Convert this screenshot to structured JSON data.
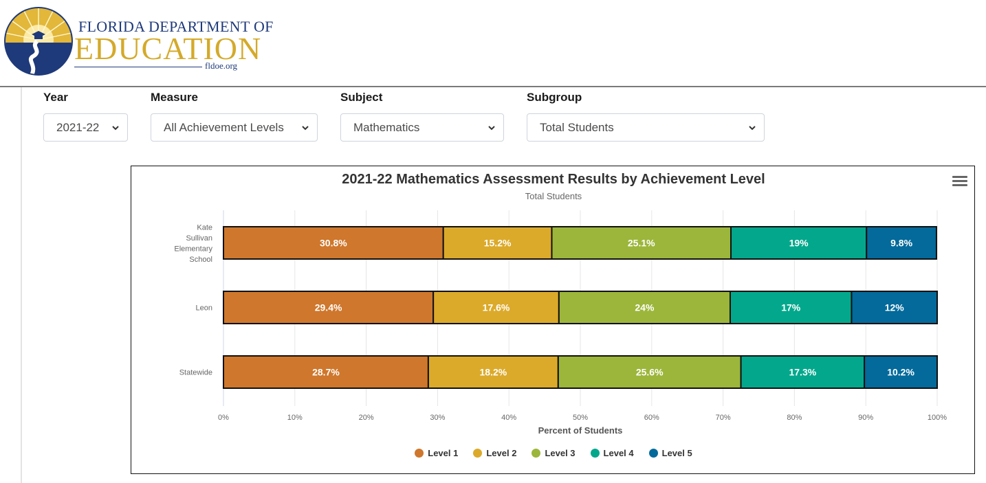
{
  "header": {
    "logo": {
      "line1": "Florida Department of",
      "line2": "EDUCATION",
      "url": "fldoe.org"
    }
  },
  "filters": [
    {
      "label": "Year",
      "value": "2021-22"
    },
    {
      "label": "Measure",
      "value": "All Achievement Levels"
    },
    {
      "label": "Subject",
      "value": "Mathematics"
    },
    {
      "label": "Subgroup",
      "value": "Total Students"
    }
  ],
  "icons": {
    "menu": "hamburger-menu-icon",
    "dropdown": "chevron-down-icon"
  },
  "chart_data": {
    "type": "bar",
    "orientation": "horizontal",
    "stacked": "percent",
    "title": "2021-22 Mathematics Assessment Results by Achievement Level",
    "subtitle": "Total Students",
    "xlabel": "Percent of Students",
    "ylabel": "",
    "xlim": [
      0,
      100
    ],
    "x_ticks": [
      "0%",
      "10%",
      "20%",
      "30%",
      "40%",
      "50%",
      "60%",
      "70%",
      "80%",
      "90%",
      "100%"
    ],
    "grid": true,
    "legend_position": "bottom",
    "categories": [
      "Kate Sullivan Elementary School",
      "Leon",
      "Statewide"
    ],
    "series": [
      {
        "name": "Level 1",
        "color": "#cf772c",
        "values": [
          30.8,
          29.4,
          28.7
        ],
        "labels": [
          "30.8%",
          "29.4%",
          "28.7%"
        ]
      },
      {
        "name": "Level 2",
        "color": "#dcaa2a",
        "values": [
          15.2,
          17.6,
          18.2
        ],
        "labels": [
          "15.2%",
          "17.6%",
          "18.2%"
        ]
      },
      {
        "name": "Level 3",
        "color": "#9cb63b",
        "values": [
          25.1,
          24,
          25.6
        ],
        "labels": [
          "25.1%",
          "24%",
          "25.6%"
        ]
      },
      {
        "name": "Level 4",
        "color": "#03a88c",
        "values": [
          19,
          17,
          17.3
        ],
        "labels": [
          "19%",
          "17%",
          "17.3%"
        ]
      },
      {
        "name": "Level 5",
        "color": "#036a9b",
        "values": [
          9.8,
          12,
          10.2
        ],
        "labels": [
          "9.8%",
          "12%",
          "10.2%"
        ]
      }
    ]
  }
}
